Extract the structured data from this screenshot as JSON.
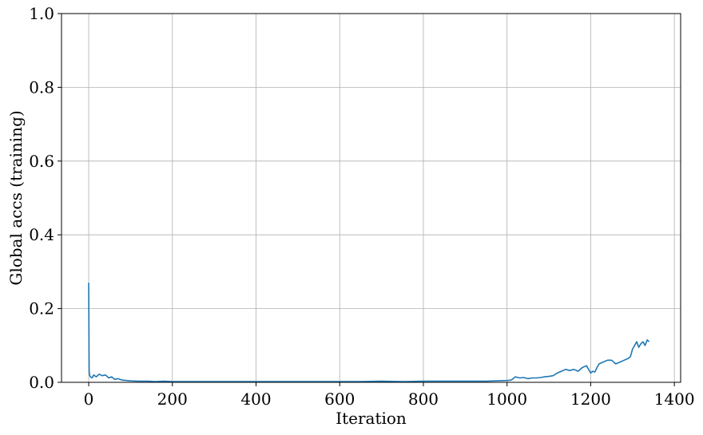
{
  "chart_data": {
    "type": "line",
    "title": "",
    "xlabel": "Iteration",
    "ylabel": "Global accs (training)",
    "xlim": [
      -65,
      1415
    ],
    "ylim": [
      0,
      1
    ],
    "xticks": [
      0,
      200,
      400,
      600,
      800,
      1000,
      1200,
      1400
    ],
    "xtick_labels": [
      "0",
      "200",
      "400",
      "600",
      "800",
      "1000",
      "1200",
      "1400"
    ],
    "yticks": [
      0,
      0.2,
      0.4,
      0.6,
      0.8,
      1.0
    ],
    "ytick_labels": [
      "0.0",
      "0.2",
      "0.4",
      "0.6",
      "0.8",
      "1.0"
    ],
    "grid": true,
    "legend": "none",
    "series_color": "#1f77b4",
    "series": [
      {
        "x": [
          0,
          1,
          2,
          4,
          8,
          12,
          18,
          25,
          32,
          40,
          48,
          55,
          62,
          70,
          80,
          90,
          100,
          120,
          140,
          160,
          180,
          200,
          250,
          300,
          350,
          400,
          450,
          500,
          550,
          600,
          650,
          700,
          750,
          800,
          850,
          900,
          950,
          1000,
          1010,
          1020,
          1030,
          1040,
          1050,
          1060,
          1070,
          1080,
          1090,
          1100,
          1110,
          1120,
          1130,
          1140,
          1150,
          1160,
          1170,
          1180,
          1190,
          1195,
          1200,
          1205,
          1210,
          1215,
          1220,
          1230,
          1240,
          1250,
          1260,
          1270,
          1280,
          1290,
          1295,
          1300,
          1305,
          1310,
          1315,
          1320,
          1325,
          1330,
          1335,
          1340
        ],
        "y": [
          0.27,
          0.03,
          0.02,
          0.015,
          0.012,
          0.02,
          0.015,
          0.022,
          0.018,
          0.02,
          0.012,
          0.015,
          0.008,
          0.01,
          0.006,
          0.005,
          0.004,
          0.003,
          0.003,
          0.002,
          0.003,
          0.002,
          0.002,
          0.002,
          0.002,
          0.002,
          0.002,
          0.002,
          0.002,
          0.002,
          0.002,
          0.003,
          0.002,
          0.003,
          0.003,
          0.003,
          0.003,
          0.005,
          0.006,
          0.015,
          0.012,
          0.013,
          0.01,
          0.012,
          0.012,
          0.013,
          0.015,
          0.016,
          0.018,
          0.025,
          0.03,
          0.035,
          0.032,
          0.035,
          0.03,
          0.04,
          0.045,
          0.035,
          0.025,
          0.03,
          0.028,
          0.04,
          0.05,
          0.055,
          0.06,
          0.06,
          0.05,
          0.055,
          0.06,
          0.065,
          0.07,
          0.09,
          0.1,
          0.11,
          0.095,
          0.105,
          0.11,
          0.1,
          0.115,
          0.11
        ]
      }
    ]
  }
}
